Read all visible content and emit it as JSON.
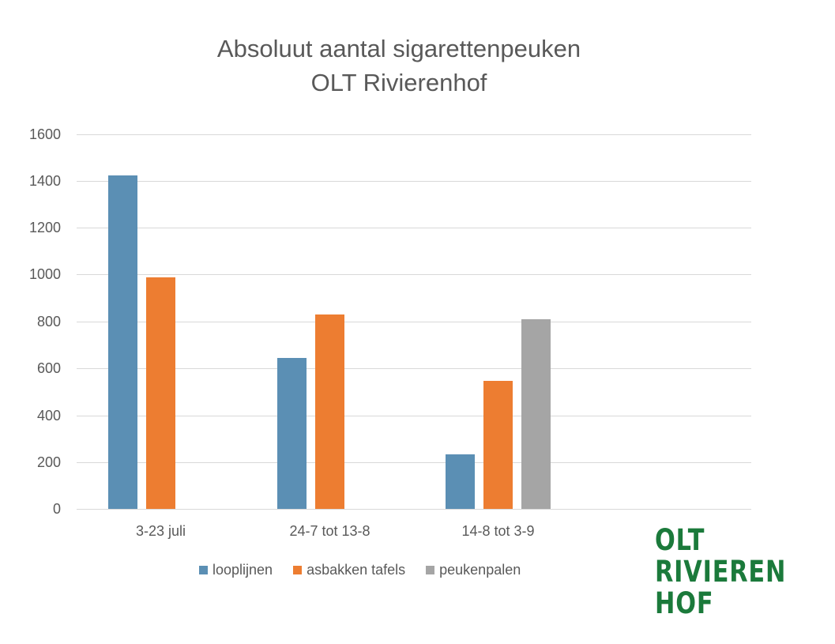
{
  "chart_data": {
    "type": "bar",
    "title": "Absoluut aantal sigarettenpeuken",
    "subtitle": "OLT Rivierenhof",
    "categories": [
      "3-23 juli",
      "24-7 tot 13-8",
      "14-8 tot 3-9",
      ""
    ],
    "series": [
      {
        "name": "looplijnen",
        "color": "#5b8fb4",
        "values": [
          1425,
          645,
          233,
          null
        ]
      },
      {
        "name": "asbakken tafels",
        "color": "#ed7d31",
        "values": [
          988,
          830,
          548,
          null
        ]
      },
      {
        "name": "peukenpalen",
        "color": "#a5a5a5",
        "values": [
          null,
          null,
          810,
          null
        ]
      }
    ],
    "xlabel": "",
    "ylabel": "",
    "ylim": [
      0,
      1600
    ],
    "yticks": [
      0,
      200,
      400,
      600,
      800,
      1000,
      1200,
      1400,
      1600
    ],
    "grid": true,
    "legend_position": "bottom"
  },
  "title": {
    "line1": "Absoluut aantal sigarettenpeuken",
    "line2": "OLT Rivierenhof"
  },
  "yaxis": {
    "ticks": [
      "1600",
      "1400",
      "1200",
      "1000",
      "800",
      "600",
      "400",
      "200",
      "0"
    ]
  },
  "xaxis": {
    "labels": [
      "3-23 juli",
      "24-7 tot 13-8",
      "14-8 tot 3-9"
    ]
  },
  "legend": {
    "items": [
      {
        "label": "looplijnen",
        "color": "#5b8fb4"
      },
      {
        "label": "asbakken tafels",
        "color": "#ed7d31"
      },
      {
        "label": "peukenpalen",
        "color": "#a5a5a5"
      }
    ]
  },
  "logo": {
    "line1": "OLT",
    "line2": "RIVIEREN",
    "line3": "HOF",
    "color": "#1b7a3b"
  }
}
